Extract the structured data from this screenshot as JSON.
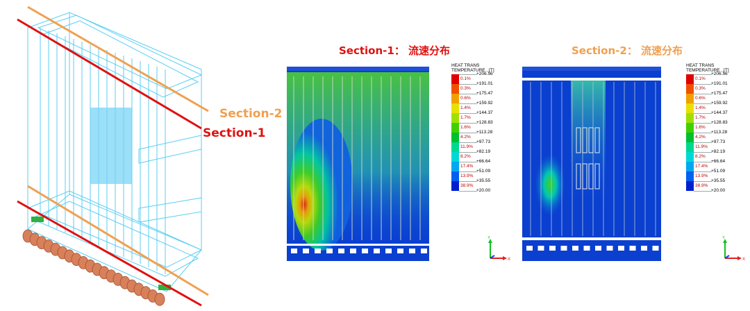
{
  "labels": {
    "section2_side": "Section-2",
    "section1_side": "Section-1",
    "title_left": "Section-1： 流速分布",
    "title_right": "Section-2： 流速分布"
  },
  "legend": {
    "header_line1": "HEAT TRANS",
    "header_line2": "TEMPERATURE , [T]",
    "values": [
      "+206.56",
      "+191.01",
      "+175.47",
      "+159.92",
      "+144.37",
      "+128.83",
      "+113.28",
      "+97.73",
      "+82.19",
      "+66.64",
      "+51.09",
      "+35.55",
      "+20.00"
    ],
    "percents": [
      "0.1%",
      "0.3%",
      "0.6%",
      "1.4%",
      "1.7%",
      "1.6%",
      "4.2%",
      "11.9%",
      "8.2%",
      "17.4%",
      "13.9%",
      "38.9%"
    ],
    "colors": [
      "#e00000",
      "#f05000",
      "#f0a000",
      "#e8e000",
      "#a0e000",
      "#40d000",
      "#00c030",
      "#00d890",
      "#00d8d8",
      "#00a8f0",
      "#0060f0",
      "#0020d0"
    ]
  },
  "axes": {
    "y": "Y",
    "x": "X"
  },
  "colors": {
    "section1_line": "#e01010",
    "section2_line": "#f0a050",
    "section1_text": "#e01010",
    "section2_text": "#f0a050",
    "wireframe": "#40c8f0"
  }
}
